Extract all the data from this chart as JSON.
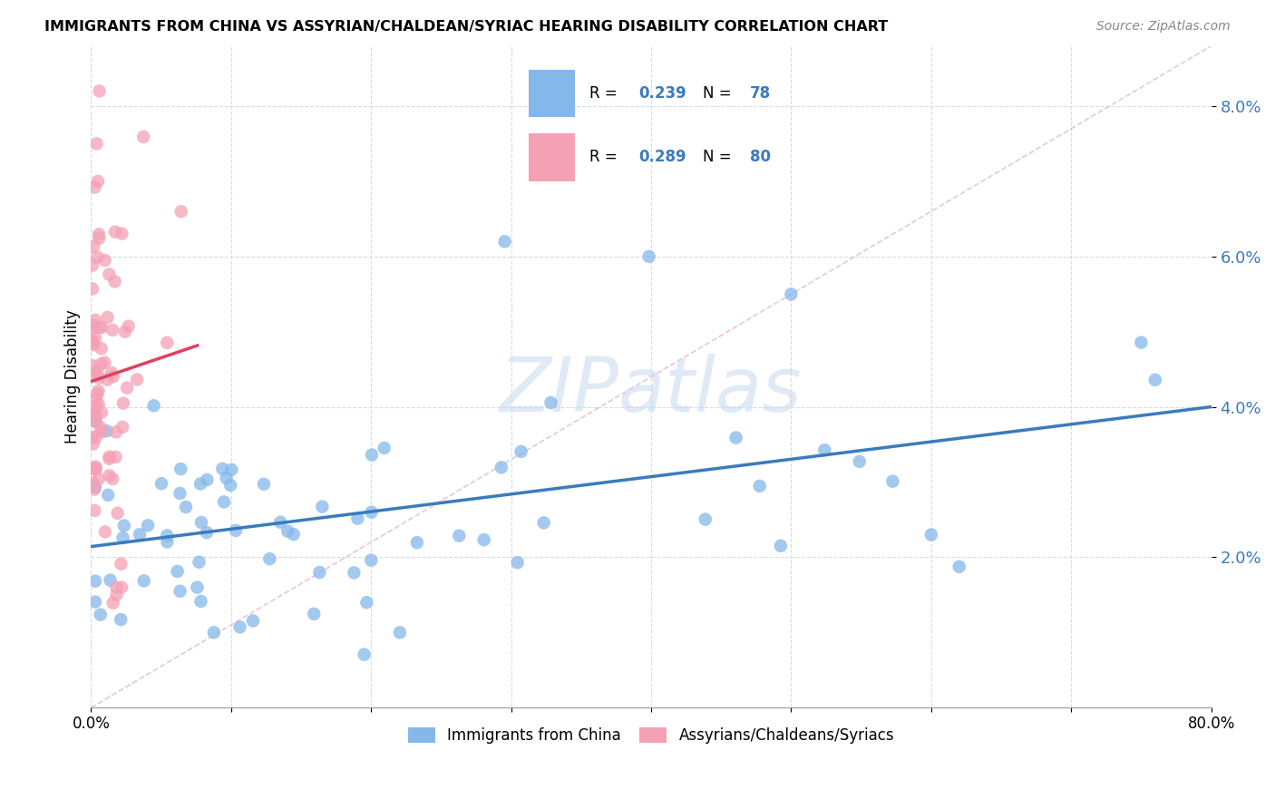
{
  "title": "IMMIGRANTS FROM CHINA VS ASSYRIAN/CHALDEAN/SYRIAC HEARING DISABILITY CORRELATION CHART",
  "source": "Source: ZipAtlas.com",
  "ylabel": "Hearing Disability",
  "xlim": [
    0.0,
    0.8
  ],
  "ylim": [
    0.0,
    0.088
  ],
  "ytick_vals": [
    0.02,
    0.04,
    0.06,
    0.08
  ],
  "ytick_labels": [
    "2.0%",
    "4.0%",
    "6.0%",
    "8.0%"
  ],
  "legend_r1": "0.239",
  "legend_n1": "78",
  "legend_r2": "0.289",
  "legend_n2": "80",
  "blue_color": "#85b8ea",
  "pink_color": "#f4a0b5",
  "blue_line_color": "#3a7bbf",
  "pink_line_color": "#e04060",
  "text_blue": "#3a7bbf",
  "watermark_color": "#c8d8f0",
  "n_blue": 78,
  "n_pink": 80
}
